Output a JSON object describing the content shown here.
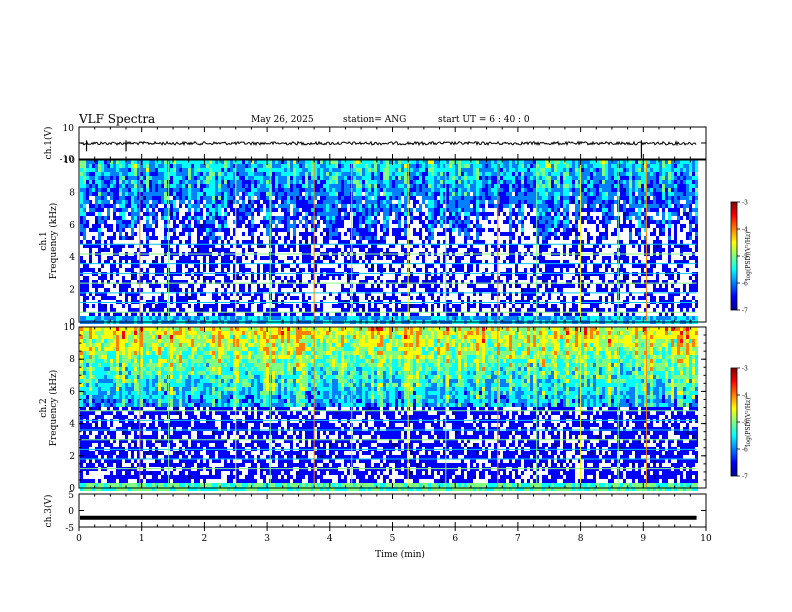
{
  "header": {
    "title": "VLF Spectra",
    "date": "May 26, 2025",
    "station": "station= ANG",
    "start_ut": "start  UT =   6 : 40 : 0"
  },
  "chart_data": [
    {
      "type": "line",
      "panel": "ch1-waveform",
      "ylabel": "ch.1(V)",
      "ylim": [
        -10,
        10
      ],
      "yticks": [
        "10",
        "-10"
      ],
      "xlim": [
        0,
        10
      ],
      "series": [
        {
          "approx_level": 0,
          "color": "#000000",
          "spikes_at_min": [
            0.12,
            0.75,
            8.97
          ]
        }
      ]
    },
    {
      "type": "heatmap",
      "panel": "ch1-spectrogram",
      "ylabel_top": "ch.1",
      "ylabel": "Frequency  (kHz)",
      "ylim": [
        0,
        10
      ],
      "yticks": [
        "0",
        "2",
        "4",
        "6",
        "8",
        "10"
      ],
      "xlim": [
        0,
        9.85
      ],
      "colorbar": {
        "label": "log(PSD)(V²/Hz)",
        "range": [
          -7,
          -3
        ],
        "ticks": [
          "-3",
          "-4",
          "-5",
          "-6",
          "-7"
        ]
      },
      "intensity": "low",
      "sferic_times_min": [
        0.97,
        1.43,
        2.5,
        3.05,
        3.75,
        4.35,
        5.25,
        5.85,
        6.68,
        7.3,
        8.0,
        8.6,
        9.05
      ],
      "line_freqs_khz": [
        0.6,
        1.2,
        1.8,
        2.4,
        3.0,
        3.6,
        4.2,
        4.8
      ]
    },
    {
      "type": "heatmap",
      "panel": "ch2-spectrogram",
      "ylabel_top": "ch.2",
      "ylabel": "Frequency  (kHz)",
      "ylim": [
        0,
        10
      ],
      "yticks": [
        "0",
        "2",
        "4",
        "6",
        "8",
        "10"
      ],
      "xlim": [
        0,
        9.85
      ],
      "colorbar": {
        "label": "log(PSD)(V²/Hz)",
        "range": [
          -7,
          -3
        ],
        "ticks": [
          "-3",
          "-4",
          "-5",
          "-6",
          "-7"
        ]
      },
      "intensity": "high",
      "sferic_times_min": [
        0.97,
        1.43,
        2.5,
        3.05,
        3.75,
        4.35,
        5.25,
        5.85,
        6.68,
        7.3,
        8.0,
        8.6,
        9.05
      ],
      "line_freqs_khz": [
        1.2,
        1.8,
        2.4,
        3.0,
        3.6,
        4.2,
        4.8
      ]
    },
    {
      "type": "line",
      "panel": "ch3-waveform",
      "ylabel": "ch.3(V)",
      "ylim": [
        -5,
        5
      ],
      "yticks": [
        "5",
        "0",
        "-5"
      ],
      "xlim": [
        0,
        10
      ],
      "xlabel": "Time  (min)",
      "xticks": [
        "0",
        "1",
        "2",
        "3",
        "4",
        "5",
        "6",
        "7",
        "8",
        "9",
        "10"
      ],
      "series": [
        {
          "approx_level": -2.2,
          "color": "#000000"
        }
      ]
    }
  ],
  "colors": {
    "jet": [
      "#00008f",
      "#0000ff",
      "#0080ff",
      "#00ffff",
      "#80ff80",
      "#ffff00",
      "#ff8000",
      "#ff0000",
      "#800000"
    ],
    "background": "#ffffff",
    "frame": "#000000"
  }
}
